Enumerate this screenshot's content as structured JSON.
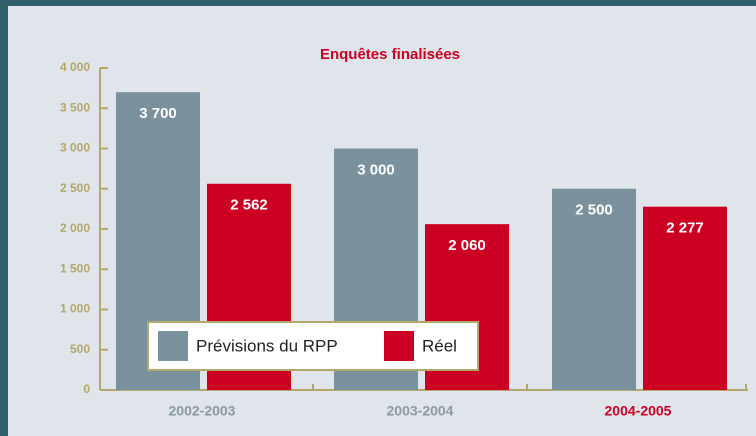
{
  "chart_data": {
    "type": "bar",
    "title": "Enquêtes finalisées",
    "categories": [
      "2002-2003",
      "2003-2004",
      "2004-2005"
    ],
    "category_label_colors": [
      "#8a9aa4",
      "#8a9aa4",
      "#cc0022"
    ],
    "series": [
      {
        "name": "Prévisions du RPP",
        "color": "#7a929e",
        "values": [
          3700,
          3000,
          2500
        ],
        "value_labels": [
          "3 700",
          "3 000",
          "2 500"
        ]
      },
      {
        "name": "Réel",
        "color": "#cc0022",
        "values": [
          2562,
          2060,
          2277
        ],
        "value_labels": [
          "2 562",
          "2 060",
          "2 277"
        ]
      }
    ],
    "ylim": [
      0,
      4000
    ],
    "yticks": [
      0,
      500,
      {
        "value": 1000,
        "label": "1 000"
      },
      {
        "value": 1500,
        "label": "1 500"
      },
      {
        "value": 2000,
        "label": "2 000"
      },
      {
        "value": 2500,
        "label": "2 500"
      },
      {
        "value": 3000,
        "label": "3 000"
      },
      {
        "value": 3500,
        "label": "3 500"
      },
      {
        "value": 4000,
        "label": "4 000"
      }
    ],
    "axis_color": "#b5a66a"
  }
}
